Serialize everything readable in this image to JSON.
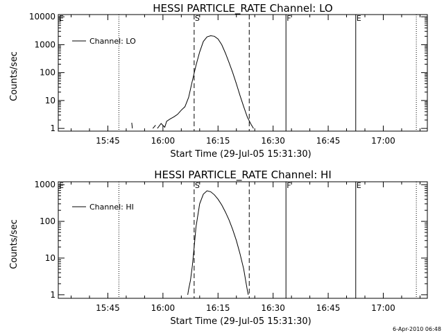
{
  "chart_data": [
    {
      "type": "line",
      "title": "HESSI PARTICLE_RATE Channel: LO",
      "xlabel": "Start Time (29-Jul-05 15:31:30)",
      "ylabel": "Counts/sec",
      "y_scale": "log",
      "ylim": [
        0.8,
        12000
      ],
      "xlim": [
        "15:31:30",
        "17:12:00"
      ],
      "x_ticks": [
        "15:45",
        "16:00",
        "16:15",
        "16:30",
        "16:45",
        "17:00"
      ],
      "y_ticks": [
        "1",
        "10",
        "100",
        "1000",
        "10000"
      ],
      "legend": {
        "position": "top-left",
        "entries": [
          "Channel: LO"
        ]
      },
      "markers": [
        {
          "label": "E",
          "x": "15:31:30",
          "style": "solid"
        },
        {
          "label": "",
          "x": "15:48:00",
          "style": "dotted"
        },
        {
          "label": "S",
          "x": "16:08:30",
          "style": "dashed"
        },
        {
          "label": "",
          "x": "16:23:30",
          "style": "dashed"
        },
        {
          "label": "F",
          "x": "16:33:30",
          "style": "solid"
        },
        {
          "label": "E",
          "x": "16:52:30",
          "style": "solid"
        },
        {
          "label": "",
          "x": "17:09:00",
          "style": "dotted"
        }
      ],
      "series": [
        {
          "name": "Channel: LO",
          "segments": [
            [
              [
                "15:51:30",
                1.6
              ],
              [
                "15:51:40",
                1
              ]
            ],
            [
              [
                "15:57:15",
                1
              ],
              [
                "15:58:00",
                1.3
              ]
            ],
            [
              [
                "15:58:30",
                1
              ],
              [
                "15:59:30",
                1.5
              ],
              [
                "16:00:30",
                1.1
              ],
              [
                "16:01:00",
                1.8
              ],
              [
                "16:02:00",
                2.2
              ],
              [
                "16:03:00",
                2.6
              ],
              [
                "16:04:00",
                3.2
              ],
              [
                "16:05:00",
                4.5
              ],
              [
                "16:06:00",
                6
              ],
              [
                "16:07:00",
                13
              ],
              [
                "16:08:00",
                50
              ],
              [
                "16:09:00",
                180
              ],
              [
                "16:10:00",
                550
              ],
              [
                "16:11:00",
                1300
              ],
              [
                "16:12:00",
                1900
              ],
              [
                "16:13:00",
                2100
              ],
              [
                "16:14:00",
                2000
              ],
              [
                "16:15:00",
                1600
              ],
              [
                "16:16:00",
                1000
              ],
              [
                "16:17:00",
                500
              ],
              [
                "16:18:00",
                230
              ],
              [
                "16:19:00",
                100
              ],
              [
                "16:20:00",
                40
              ],
              [
                "16:21:00",
                15
              ],
              [
                "16:22:00",
                6
              ],
              [
                "16:23:00",
                2.5
              ],
              [
                "16:24:00",
                1.4
              ],
              [
                "16:24:40",
                1
              ]
            ]
          ]
        }
      ]
    },
    {
      "type": "line",
      "title": "HESSI PARTICLE_RATE Channel: HI",
      "xlabel": "Start Time (29-Jul-05 15:31:30)",
      "ylabel": "Counts/sec",
      "y_scale": "log",
      "ylim": [
        0.8,
        1200
      ],
      "xlim": [
        "15:31:30",
        "17:12:00"
      ],
      "x_ticks": [
        "15:45",
        "16:00",
        "16:15",
        "16:30",
        "16:45",
        "17:00"
      ],
      "y_ticks": [
        "1",
        "10",
        "100",
        "1000"
      ],
      "legend": {
        "position": "top-left",
        "entries": [
          "Channel: HI"
        ]
      },
      "markers": [
        {
          "label": "E",
          "x": "15:31:30",
          "style": "solid"
        },
        {
          "label": "",
          "x": "15:48:00",
          "style": "dotted"
        },
        {
          "label": "S",
          "x": "16:08:30",
          "style": "dashed"
        },
        {
          "label": "",
          "x": "16:23:30",
          "style": "dashed"
        },
        {
          "label": "F",
          "x": "16:33:30",
          "style": "solid"
        },
        {
          "label": "E",
          "x": "16:52:30",
          "style": "solid"
        },
        {
          "label": "",
          "x": "17:09:00",
          "style": "dotted"
        }
      ],
      "series": [
        {
          "name": "Channel: HI",
          "segments": [
            [
              [
                "16:06:45",
                1
              ],
              [
                "16:07:00",
                1.4
              ],
              [
                "16:07:30",
                2.5
              ],
              [
                "16:08:00",
                6
              ],
              [
                "16:08:30",
                20
              ],
              [
                "16:09:00",
                70
              ],
              [
                "16:10:00",
                300
              ],
              [
                "16:11:00",
                550
              ],
              [
                "16:12:00",
                680
              ],
              [
                "16:13:00",
                640
              ],
              [
                "16:14:00",
                530
              ],
              [
                "16:15:00",
                400
              ],
              [
                "16:16:00",
                280
              ],
              [
                "16:17:00",
                180
              ],
              [
                "16:18:00",
                110
              ],
              [
                "16:19:00",
                60
              ],
              [
                "16:20:00",
                30
              ],
              [
                "16:21:00",
                13
              ],
              [
                "16:22:00",
                5
              ],
              [
                "16:22:30",
                2.5
              ],
              [
                "16:23:00",
                1.3
              ],
              [
                "16:23:15",
                1
              ]
            ]
          ]
        }
      ]
    }
  ],
  "footer": {
    "timestamp": "6-Apr-2010 06:48"
  }
}
